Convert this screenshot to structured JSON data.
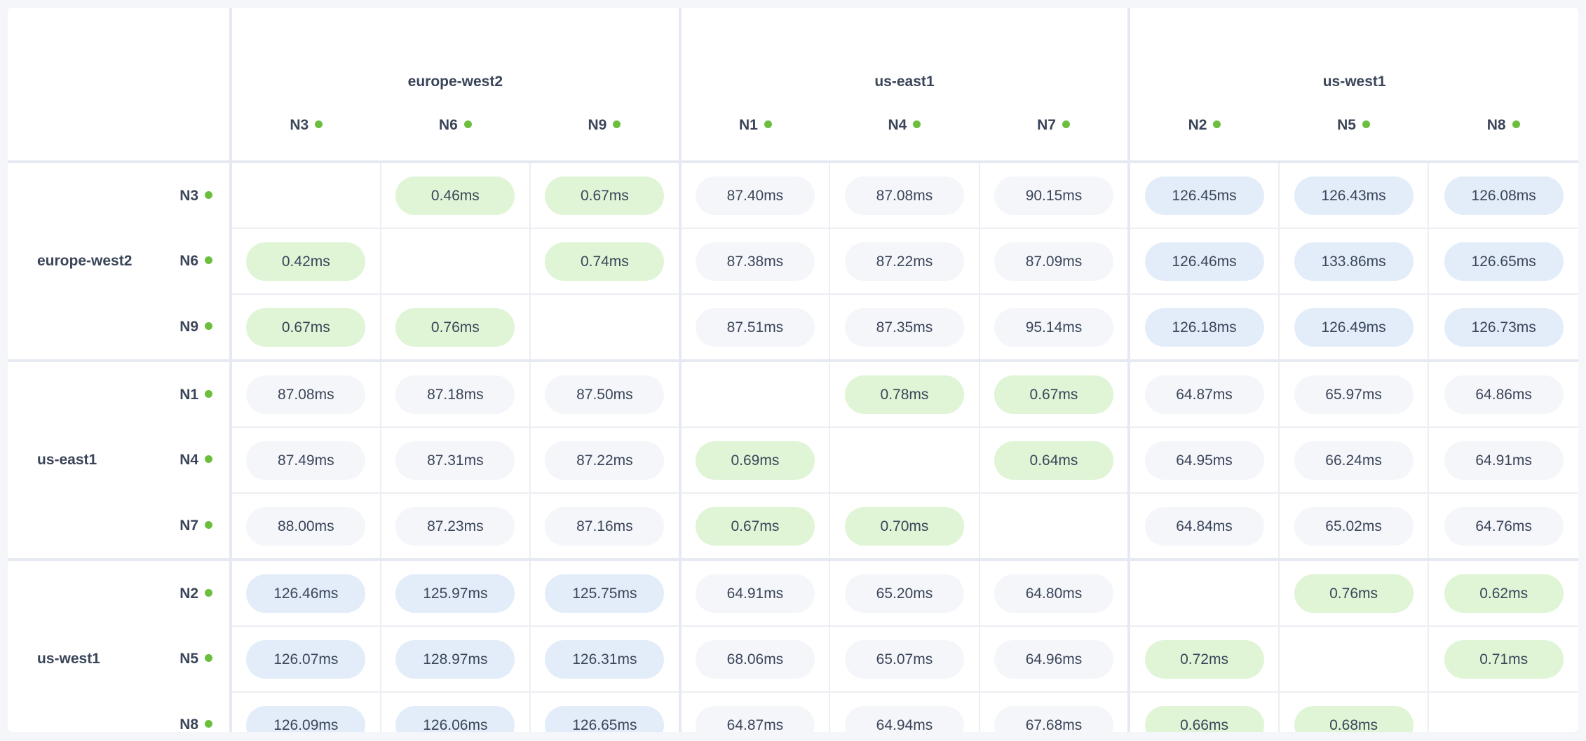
{
  "regions": [
    {
      "name": "europe-west2",
      "nodes": [
        "N3",
        "N6",
        "N9"
      ]
    },
    {
      "name": "us-east1",
      "nodes": [
        "N1",
        "N4",
        "N7"
      ]
    },
    {
      "name": "us-west1",
      "nodes": [
        "N2",
        "N5",
        "N8"
      ]
    }
  ],
  "node_status_color": "#6cbf3e",
  "colors": {
    "same_region": "#dff5d6",
    "medium_latency": "#f4f6fa",
    "high_latency": "#e3edf9",
    "text": "#3b4559"
  },
  "matrix": [
    [
      "",
      "0.46ms",
      "0.67ms",
      "87.40ms",
      "87.08ms",
      "90.15ms",
      "126.45ms",
      "126.43ms",
      "126.08ms"
    ],
    [
      "0.42ms",
      "",
      "0.74ms",
      "87.38ms",
      "87.22ms",
      "87.09ms",
      "126.46ms",
      "133.86ms",
      "126.65ms"
    ],
    [
      "0.67ms",
      "0.76ms",
      "",
      "87.51ms",
      "87.35ms",
      "95.14ms",
      "126.18ms",
      "126.49ms",
      "126.73ms"
    ],
    [
      "87.08ms",
      "87.18ms",
      "87.50ms",
      "",
      "0.78ms",
      "0.67ms",
      "64.87ms",
      "65.97ms",
      "64.86ms"
    ],
    [
      "87.49ms",
      "87.31ms",
      "87.22ms",
      "0.69ms",
      "",
      "0.64ms",
      "64.95ms",
      "66.24ms",
      "64.91ms"
    ],
    [
      "88.00ms",
      "87.23ms",
      "87.16ms",
      "0.67ms",
      "0.70ms",
      "",
      "64.84ms",
      "65.02ms",
      "64.76ms"
    ],
    [
      "126.46ms",
      "125.97ms",
      "125.75ms",
      "64.91ms",
      "65.20ms",
      "64.80ms",
      "",
      "0.76ms",
      "0.62ms"
    ],
    [
      "126.07ms",
      "128.97ms",
      "126.31ms",
      "68.06ms",
      "65.07ms",
      "64.96ms",
      "0.72ms",
      "",
      "0.71ms"
    ],
    [
      "126.09ms",
      "126.06ms",
      "126.65ms",
      "64.87ms",
      "64.94ms",
      "67.68ms",
      "0.66ms",
      "0.68ms",
      ""
    ]
  ]
}
